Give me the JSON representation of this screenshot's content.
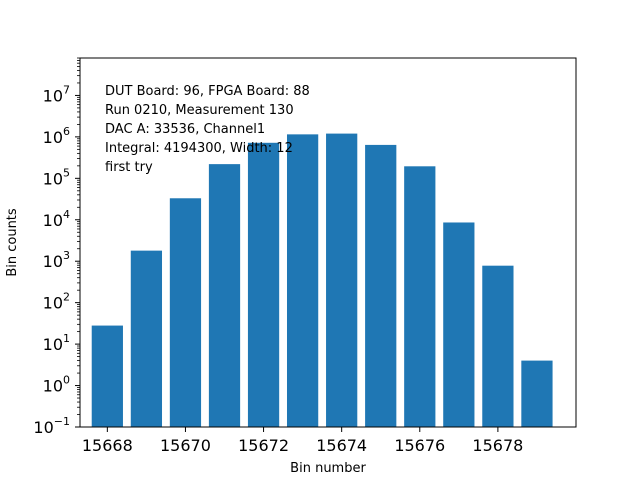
{
  "chart_data": {
    "type": "bar",
    "xlabel": "Bin number",
    "ylabel": "Bin counts",
    "yscale": "log",
    "ylim": [
      0.1,
      80000000
    ],
    "xlim": [
      15667.3,
      15680.0
    ],
    "bar_color": "#1f77b4",
    "bars": [
      {
        "x": 15668,
        "count": 28
      },
      {
        "x": 15669,
        "count": 1800
      },
      {
        "x": 15670,
        "count": 33000
      },
      {
        "x": 15671,
        "count": 220000
      },
      {
        "x": 15672,
        "count": 720000
      },
      {
        "x": 15673,
        "count": 1150000
      },
      {
        "x": 15674,
        "count": 1200000
      },
      {
        "x": 15675,
        "count": 640000
      },
      {
        "x": 15676,
        "count": 195000
      },
      {
        "x": 15677,
        "count": 8600
      },
      {
        "x": 15678,
        "count": 780
      },
      {
        "x": 15679,
        "count": 4
      }
    ],
    "xticks": [
      {
        "value": 15668,
        "label": "15668"
      },
      {
        "value": 15670,
        "label": "15670"
      },
      {
        "value": 15672,
        "label": "15672"
      },
      {
        "value": 15674,
        "label": "15674"
      },
      {
        "value": 15676,
        "label": "15676"
      },
      {
        "value": 15678,
        "label": "15678"
      }
    ],
    "yticks": [
      {
        "exp": -1,
        "base": "10",
        "sup": "−1"
      },
      {
        "exp": 0,
        "base": "10",
        "sup": "0"
      },
      {
        "exp": 1,
        "base": "10",
        "sup": "1"
      },
      {
        "exp": 2,
        "base": "10",
        "sup": "2"
      },
      {
        "exp": 3,
        "base": "10",
        "sup": "3"
      },
      {
        "exp": 4,
        "base": "10",
        "sup": "4"
      },
      {
        "exp": 5,
        "base": "10",
        "sup": "5"
      },
      {
        "exp": 6,
        "base": "10",
        "sup": "6"
      },
      {
        "exp": 7,
        "base": "10",
        "sup": "7"
      }
    ],
    "annotation": [
      "DUT Board: 96, FPGA Board: 88",
      "Run 0210, Measurement 130",
      "DAC A: 33536, Channel1",
      "Integral: 4194300, Width: 12",
      "first try"
    ]
  }
}
